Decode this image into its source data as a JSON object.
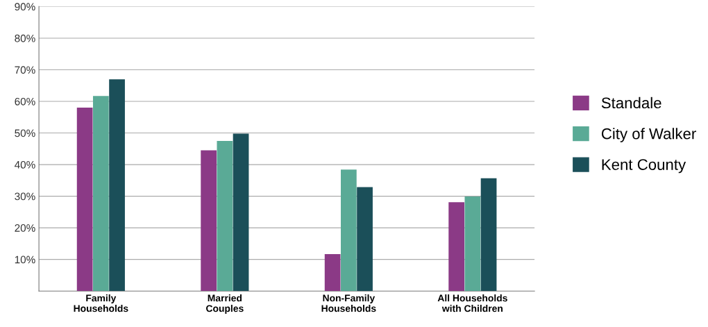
{
  "chart_data": {
    "type": "bar",
    "categories": [
      "Family\nHouseholds",
      "Married\nCouples",
      "Non-Family\nHouseholds",
      "All Households\nwith Children"
    ],
    "series": [
      {
        "name": "Standale",
        "color": "#8b3a86",
        "values": [
          58,
          44.5,
          11.7,
          28.1
        ]
      },
      {
        "name": "City of Walker",
        "color": "#5aaa96",
        "values": [
          61.7,
          47.5,
          38.4,
          29.9
        ]
      },
      {
        "name": "Kent County",
        "color": "#1b4f59",
        "values": [
          67,
          49.8,
          32.9,
          35.7
        ]
      }
    ],
    "ylim": [
      0,
      90
    ],
    "yticks": [
      {
        "value": 10,
        "label": "10%"
      },
      {
        "value": 20,
        "label": "20%"
      },
      {
        "value": 30,
        "label": "30%"
      },
      {
        "value": 40,
        "label": "40%"
      },
      {
        "value": 50,
        "label": "50%"
      },
      {
        "value": 60,
        "label": "60%"
      },
      {
        "value": 70,
        "label": "70%"
      },
      {
        "value": 80,
        "label": "80%"
      },
      {
        "value": 90,
        "label": "90%"
      }
    ],
    "grid": "y",
    "legend": "right"
  }
}
